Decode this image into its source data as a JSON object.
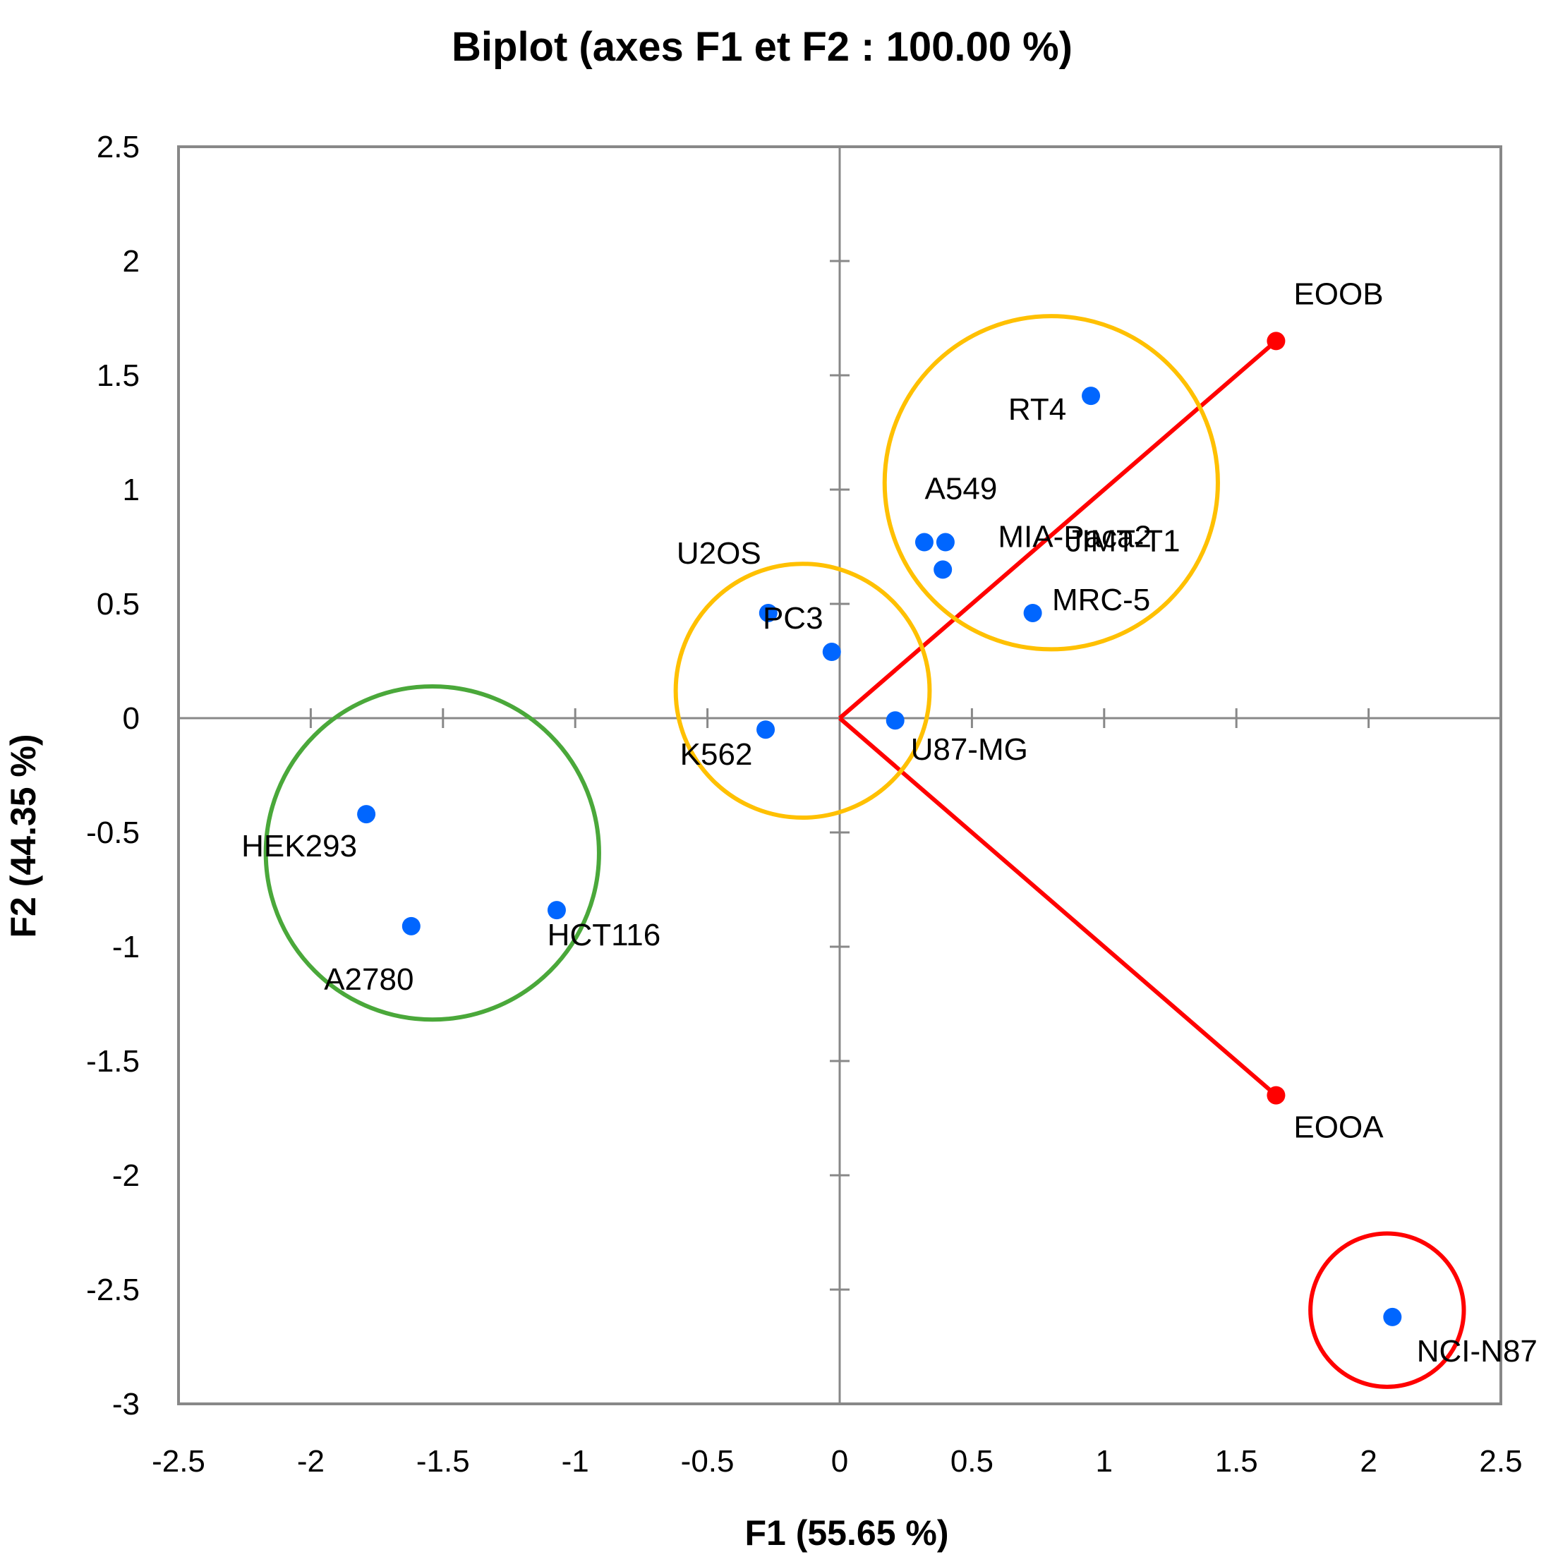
{
  "chart_data": {
    "type": "scatter",
    "title": "Biplot (axes F1 et F2 : 100.00 %)",
    "xlabel": "F1 (55.65 %)",
    "ylabel": "F2 (44.35 %)",
    "xlim": [
      -2.5,
      2.5
    ],
    "ylim": [
      -3,
      2.5
    ],
    "x_ticks": [
      -2.5,
      -2,
      -1.5,
      -1,
      -0.5,
      0,
      0.5,
      1,
      1.5,
      2,
      2.5
    ],
    "y_ticks": [
      -3,
      -2.5,
      -2,
      -1.5,
      -1,
      -0.5,
      0,
      0.5,
      1,
      1.5,
      2,
      2.5
    ],
    "x_tick_labels": [
      "-2.5",
      "-2",
      "-1.5",
      "-1",
      "-0.5",
      "0",
      "0.5",
      "1",
      "1.5",
      "2",
      "2.5"
    ],
    "y_tick_labels": [
      "-3",
      "-2.5",
      "-2",
      "-1.5",
      "-1",
      "-0.5",
      "0",
      "0.5",
      "1",
      "1.5",
      "2",
      "2.5"
    ],
    "grid": false,
    "colors": {
      "observations": "#0066ff",
      "variables": "#ff0000",
      "frame": "#888888"
    },
    "observations": [
      {
        "name": "RT4",
        "x": 0.95,
        "y": 1.41
      },
      {
        "name": "JIMT-T1",
        "x": 0.4,
        "y": 0.77
      },
      {
        "name": "A549",
        "x": 0.32,
        "y": 0.77
      },
      {
        "name": "MIA-Paca2",
        "x": 0.39,
        "y": 0.65
      },
      {
        "name": "MRC-5",
        "x": 0.73,
        "y": 0.46
      },
      {
        "name": "U2OS",
        "x": -0.27,
        "y": 0.46
      },
      {
        "name": "PC3",
        "x": -0.03,
        "y": 0.29
      },
      {
        "name": "K562",
        "x": -0.28,
        "y": -0.05
      },
      {
        "name": "U87-MG",
        "x": 0.21,
        "y": -0.01
      },
      {
        "name": "HEK293",
        "x": -1.79,
        "y": -0.42
      },
      {
        "name": "A2780",
        "x": -1.62,
        "y": -0.91
      },
      {
        "name": "HCT116",
        "x": -1.07,
        "y": -0.84
      },
      {
        "name": "NCI-N87",
        "x": 2.09,
        "y": -2.62
      }
    ],
    "variables": [
      {
        "name": "EOOB",
        "x": 1.65,
        "y": 1.65
      },
      {
        "name": "EOOA",
        "x": 1.65,
        "y": -1.65
      }
    ],
    "clusters": [
      {
        "color": "#ffc000",
        "cx": 0.8,
        "cy": 1.03,
        "r": 0.63
      },
      {
        "color": "#ffc000",
        "cx": -0.14,
        "cy": 0.12,
        "r": 0.48
      },
      {
        "color": "#4aa83a",
        "cx": -1.54,
        "cy": -0.59,
        "r": 0.63
      },
      {
        "color": "#ff0000",
        "cx": 2.07,
        "cy": -2.59,
        "r": 0.29
      }
    ]
  }
}
